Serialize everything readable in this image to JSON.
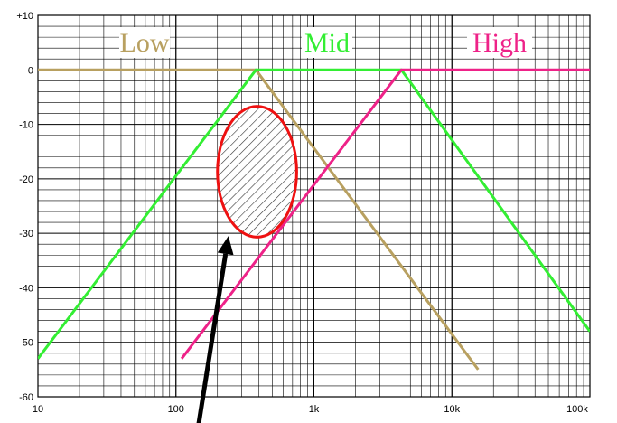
{
  "chart_data": {
    "type": "line",
    "title": "",
    "xlabel": "",
    "ylabel": "",
    "x_scale": "log",
    "xlim": [
      10,
      100000
    ],
    "ylim": [
      -60,
      10
    ],
    "grid": true,
    "x_ticks": [
      {
        "value": 10,
        "label": "10"
      },
      {
        "value": 100,
        "label": "100"
      },
      {
        "value": 1000,
        "label": "1k"
      },
      {
        "value": 10000,
        "label": "10k"
      },
      {
        "value": 100000,
        "label": "100k"
      }
    ],
    "y_ticks": [
      {
        "value": 10,
        "label": "+10"
      },
      {
        "value": 0,
        "label": "0"
      },
      {
        "value": -10,
        "label": "-10"
      },
      {
        "value": -20,
        "label": "-20"
      },
      {
        "value": -30,
        "label": "-30"
      },
      {
        "value": -40,
        "label": "-40"
      },
      {
        "value": -50,
        "label": "-50"
      },
      {
        "value": -60,
        "label": "-60"
      }
    ],
    "series": [
      {
        "name": "Low",
        "color": "#b8a060",
        "points": [
          [
            10,
            0
          ],
          [
            380,
            0
          ],
          [
            15500,
            -55
          ]
        ]
      },
      {
        "name": "Mid",
        "color": "#33ee33",
        "points": [
          [
            10,
            -53
          ],
          [
            380,
            0
          ],
          [
            4300,
            0
          ],
          [
            100000,
            -48
          ]
        ]
      },
      {
        "name": "High",
        "color": "#ee2288",
        "points": [
          [
            110,
            -53
          ],
          [
            4300,
            0
          ],
          [
            100000,
            0
          ]
        ]
      }
    ],
    "annotations": [
      {
        "type": "hatched-ellipse",
        "center": [
          340,
          -18.7
        ],
        "x_range": [
          200,
          750
        ],
        "y_range": [
          -30.7,
          -6.7
        ],
        "stroke": "#ee1111"
      },
      {
        "type": "arrow",
        "from": [
          140,
          -68
        ],
        "to": [
          240,
          -30.5
        ],
        "color": "#000000"
      }
    ]
  }
}
